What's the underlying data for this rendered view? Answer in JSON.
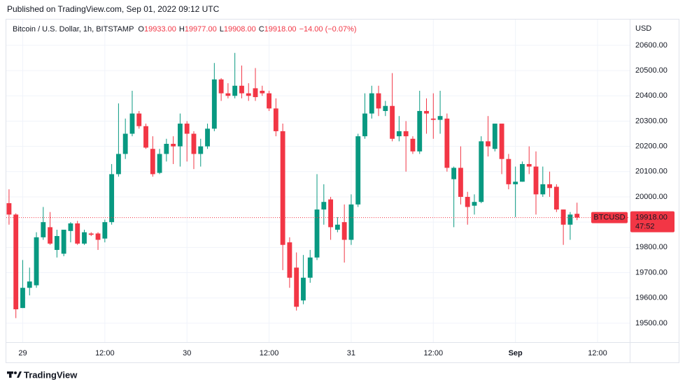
{
  "published": "Published on TradingView.com, Sep 01, 2022 09:12 UTC",
  "brand": "TradingView",
  "chart_data": {
    "type": "candlestick",
    "title": "Bitcoin / U.S. Dollar, 1h, BITSTAMP",
    "legend_items": [
      {
        "key": "O",
        "text": "19933.00"
      },
      {
        "key": "H",
        "text": "19977.00"
      },
      {
        "key": "L",
        "text": "19908.00"
      },
      {
        "key": "C",
        "text": "19918.00"
      }
    ],
    "change": "−14.00 (−0.07%)",
    "currency": "USD",
    "last_price": {
      "symbol": "BTCUSD",
      "value": 19918,
      "label": "19918.00",
      "countdown": "47:52"
    },
    "up_color": "#089981",
    "down_color": "#f23645",
    "grid": true,
    "xlim": [
      -0.4,
      90.7
    ],
    "xticks": [
      {
        "value": 2,
        "label": "29"
      },
      {
        "value": 14,
        "label": "12:00"
      },
      {
        "value": 26,
        "label": "30"
      },
      {
        "value": 38,
        "label": "12:00"
      },
      {
        "value": 50,
        "label": "31"
      },
      {
        "value": 62,
        "label": "12:00"
      },
      {
        "value": 74,
        "label": "Sep"
      },
      {
        "value": 86,
        "label": "12:00"
      }
    ],
    "bold_xtick": 6,
    "ylim": [
      19425,
      20702
    ],
    "yticks": [
      {
        "value": 19500,
        "label": "19500.00"
      },
      {
        "value": 19600,
        "label": "19600.00"
      },
      {
        "value": 19700,
        "label": "19700.00"
      },
      {
        "value": 19800,
        "label": "19800.00"
      },
      {
        "value": 19900,
        "label": "19900.00"
      },
      {
        "value": 20000,
        "label": "20000.00"
      },
      {
        "value": 20100,
        "label": "20100.00"
      },
      {
        "value": 20200,
        "label": "20200.00"
      },
      {
        "value": 20300,
        "label": "20300.00"
      },
      {
        "value": 20400,
        "label": "20400.00"
      },
      {
        "value": 20500,
        "label": "20500.00"
      },
      {
        "value": 20600,
        "label": "20600.00"
      }
    ],
    "open": [
      19975,
      19930,
      19560,
      19640,
      19650,
      19840,
      19880,
      19790,
      19775,
      19865,
      19895,
      19815,
      19855,
      19855,
      19835,
      19900,
      20090,
      20170,
      20250,
      20330,
      20280,
      20190,
      20095,
      20170,
      20210,
      20200,
      20290,
      20250,
      20170,
      20200,
      20270,
      20465,
      20410,
      20400,
      20440,
      20410,
      20430,
      20420,
      20410,
      20350,
      20260,
      19820,
      19720,
      19590,
      19680,
      19760,
      19950,
      19990,
      19870,
      19900,
      19830,
      19970,
      20240,
      20330,
      20410,
      20340,
      20360,
      20240,
      20260,
      20230,
      20180,
      20340,
      20310,
      20305,
      20310,
      20070,
      20115,
      20000,
      19965,
      19980,
      20220,
      20190,
      20290,
      20150,
      20050,
      20060,
      20130,
      20120,
      20010,
      20050,
      20040,
      19950,
      19890,
      19933
    ],
    "high": [
      20030,
      19935,
      19750,
      19720,
      19860,
      19960,
      19940,
      19870,
      19870,
      19900,
      19905,
      19870,
      19860,
      19860,
      19910,
      20130,
      20370,
      20310,
      20420,
      20340,
      20290,
      20240,
      20190,
      20230,
      20240,
      20330,
      20300,
      20260,
      20230,
      20290,
      20530,
      20470,
      20450,
      20570,
      20520,
      20450,
      20510,
      20440,
      20420,
      20390,
      20290,
      19840,
      19780,
      19770,
      19790,
      20090,
      20050,
      20000,
      19920,
      19970,
      20010,
      20250,
      20410,
      20440,
      20440,
      20380,
      20490,
      20320,
      20300,
      20240,
      20420,
      20390,
      20410,
      20420,
      20330,
      20120,
      20200,
      20020,
      20010,
      20240,
      20320,
      20290,
      20290,
      20170,
      20120,
      20140,
      20200,
      20180,
      20120,
      20100,
      20050,
      19950,
      19940,
      19977
    ],
    "low": [
      19890,
      19520,
      19560,
      19610,
      19640,
      19830,
      19810,
      19760,
      19765,
      19820,
      19810,
      19810,
      19845,
      19790,
      19820,
      19890,
      20080,
      20150,
      20240,
      20270,
      20190,
      20080,
      20090,
      20140,
      20130,
      20120,
      20140,
      20110,
      20120,
      20190,
      20260,
      20380,
      20390,
      20390,
      20390,
      20380,
      20380,
      20400,
      20340,
      20240,
      19710,
      19640,
      19550,
      19575,
      19660,
      19750,
      19890,
      19830,
      19860,
      19740,
      19810,
      19960,
      20230,
      20310,
      20320,
      20320,
      20220,
      20220,
      20100,
      20170,
      20170,
      20250,
      20230,
      20250,
      20100,
      19880,
      19970,
      19890,
      19930,
      19975,
      20160,
      20180,
      20090,
      20030,
      19920,
      20060,
      20090,
      19930,
      20000,
      20000,
      19940,
      19810,
      19830,
      19908
    ],
    "close": [
      19930,
      19555,
      19640,
      19665,
      19840,
      19900,
      19815,
      19845,
      19870,
      19895,
      19815,
      19860,
      19850,
      19830,
      19900,
      20090,
      20170,
      20250,
      20330,
      20280,
      20195,
      20090,
      20170,
      20210,
      20200,
      20290,
      20250,
      20170,
      20200,
      20270,
      20465,
      20410,
      20400,
      20440,
      20410,
      20400,
      20395,
      20410,
      20350,
      20260,
      19810,
      19680,
      19565,
      19680,
      19760,
      19950,
      19980,
      19880,
      19890,
      19830,
      19970,
      20240,
      20330,
      20410,
      20350,
      20360,
      20230,
      20260,
      20240,
      20180,
      20340,
      20330,
      20305,
      20320,
      20115,
      20115,
      20000,
      19960,
      19980,
      20220,
      20200,
      20290,
      20150,
      20050,
      20060,
      20130,
      20120,
      20010,
      20050,
      20035,
      19950,
      19890,
      19930,
      19918
    ]
  }
}
